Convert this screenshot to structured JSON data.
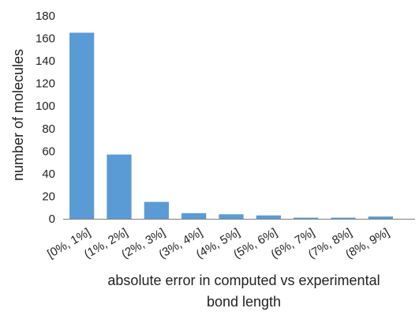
{
  "chart_data": {
    "type": "bar",
    "title": "",
    "xlabel": "absolute error in computed vs experimental bond length",
    "xlabel_lines": [
      "absolute error in computed vs experimental",
      "bond length"
    ],
    "ylabel": "number of molecules",
    "ylim": [
      0,
      180
    ],
    "yticks": [
      0,
      20,
      40,
      60,
      80,
      100,
      120,
      140,
      160,
      180
    ],
    "grid": false,
    "legend": "none",
    "categories": [
      "[0%, 1%]",
      "(1%, 2%]",
      "(2%, 3%]",
      "(3%, 4%]",
      "(4%, 5%]",
      "(5%, 6%]",
      "(6%, 7%]",
      "(7%, 8%]",
      "(8%, 9%]"
    ],
    "values": [
      165,
      57,
      15,
      5,
      4,
      3,
      1,
      1,
      2
    ],
    "bar_color": "#5b9bd5",
    "axis_color": "#7f7f7f"
  }
}
